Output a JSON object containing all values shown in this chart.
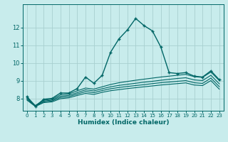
{
  "bg_color": "#c8ecec",
  "grid_color": "#a8d0d0",
  "line_color": "#006666",
  "x_label": "Humidex (Indice chaleur)",
  "x_ticks": [
    0,
    1,
    2,
    3,
    4,
    5,
    6,
    7,
    8,
    9,
    10,
    11,
    12,
    13,
    14,
    15,
    16,
    17,
    18,
    19,
    20,
    21,
    22,
    23
  ],
  "y_ticks": [
    8,
    9,
    10,
    11,
    12
  ],
  "xlim": [
    -0.5,
    23.5
  ],
  "ylim": [
    7.3,
    13.3
  ],
  "series": [
    {
      "x": [
        0,
        1,
        2,
        3,
        4,
        5,
        6,
        7,
        8,
        9,
        10,
        11,
        12,
        13,
        14,
        15,
        16,
        17,
        18,
        19,
        20,
        21,
        22,
        23
      ],
      "y": [
        8.1,
        7.55,
        7.95,
        8.0,
        8.3,
        8.3,
        8.55,
        9.2,
        8.85,
        9.3,
        10.6,
        11.35,
        11.85,
        12.5,
        12.1,
        11.8,
        10.9,
        9.45,
        9.4,
        9.45,
        9.25,
        9.2,
        9.55,
        9.05
      ],
      "marker": "+",
      "lw": 1.0
    },
    {
      "x": [
        0,
        1,
        2,
        3,
        4,
        5,
        6,
        7,
        8,
        9,
        10,
        11,
        12,
        13,
        14,
        15,
        16,
        17,
        18,
        19,
        20,
        21,
        22,
        23
      ],
      "y": [
        8.05,
        7.6,
        7.9,
        7.95,
        8.2,
        8.25,
        8.42,
        8.58,
        8.52,
        8.65,
        8.78,
        8.88,
        8.95,
        9.02,
        9.08,
        9.14,
        9.2,
        9.25,
        9.3,
        9.35,
        9.22,
        9.18,
        9.48,
        9.0
      ],
      "marker": null,
      "lw": 0.8
    },
    {
      "x": [
        0,
        1,
        2,
        3,
        4,
        5,
        6,
        7,
        8,
        9,
        10,
        11,
        12,
        13,
        14,
        15,
        16,
        17,
        18,
        19,
        20,
        21,
        22,
        23
      ],
      "y": [
        8.0,
        7.58,
        7.85,
        7.9,
        8.12,
        8.17,
        8.32,
        8.48,
        8.42,
        8.54,
        8.65,
        8.73,
        8.79,
        8.85,
        8.91,
        8.96,
        9.02,
        9.07,
        9.12,
        9.16,
        9.04,
        9.0,
        9.3,
        8.82
      ],
      "marker": null,
      "lw": 0.8
    },
    {
      "x": [
        0,
        1,
        2,
        3,
        4,
        5,
        6,
        7,
        8,
        9,
        10,
        11,
        12,
        13,
        14,
        15,
        16,
        17,
        18,
        19,
        20,
        21,
        22,
        23
      ],
      "y": [
        7.95,
        7.56,
        7.8,
        7.85,
        8.05,
        8.1,
        8.24,
        8.38,
        8.32,
        8.44,
        8.54,
        8.61,
        8.67,
        8.72,
        8.77,
        8.83,
        8.88,
        8.92,
        8.96,
        9.0,
        8.88,
        8.84,
        9.14,
        8.66
      ],
      "marker": null,
      "lw": 0.8
    },
    {
      "x": [
        0,
        1,
        2,
        3,
        4,
        5,
        6,
        7,
        8,
        9,
        10,
        11,
        12,
        13,
        14,
        15,
        16,
        17,
        18,
        19,
        20,
        21,
        22,
        23
      ],
      "y": [
        7.9,
        7.54,
        7.76,
        7.8,
        7.98,
        8.03,
        8.16,
        8.28,
        8.22,
        8.34,
        8.43,
        8.49,
        8.55,
        8.6,
        8.65,
        8.7,
        8.75,
        8.79,
        8.83,
        8.87,
        8.75,
        8.72,
        9.0,
        8.52
      ],
      "marker": null,
      "lw": 0.8
    }
  ]
}
